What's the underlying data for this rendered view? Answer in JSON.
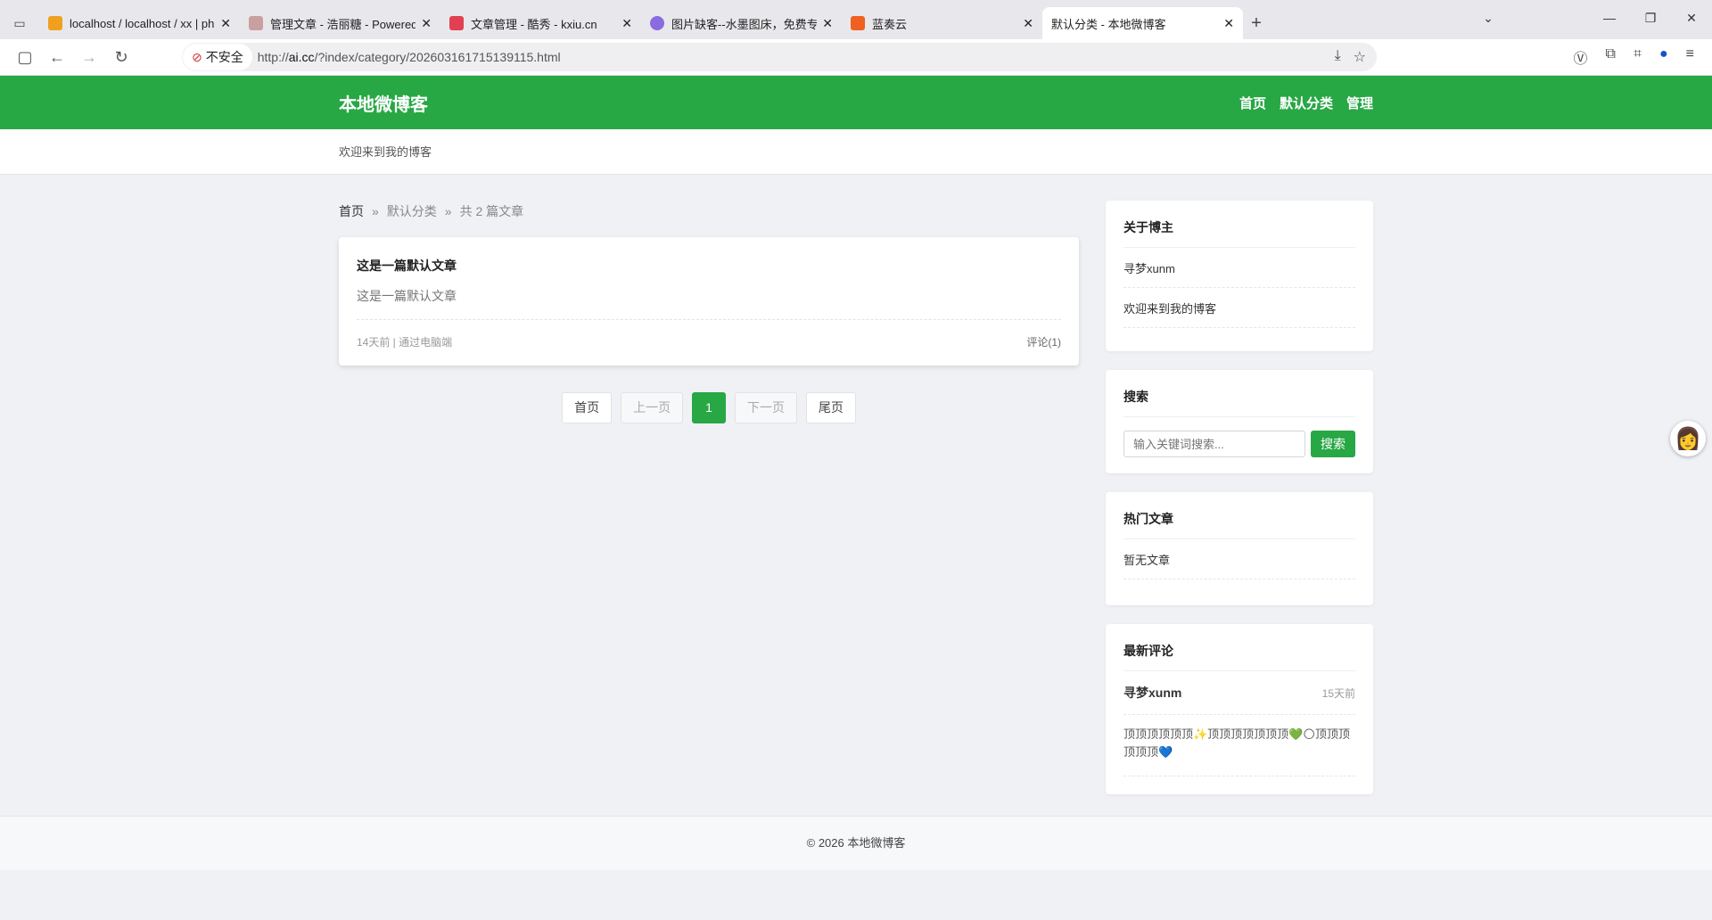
{
  "browser": {
    "tabs": [
      {
        "title": "localhost / localhost / xx | ph",
        "color": "#f0a020"
      },
      {
        "title": "管理文章 - 浩丽糖 - Powered b",
        "color": "#c8a0a0"
      },
      {
        "title": "文章管理 - 酷秀 - kxiu.cn",
        "color": "#e04050"
      },
      {
        "title": "图片缺客--水墨图床，免费专业",
        "color": "#8a6be0"
      },
      {
        "title": "蓝奏云",
        "color": "#f06020"
      },
      {
        "title": "默认分类 - 本地微博客",
        "color": ""
      }
    ],
    "insecure_label": "不安全",
    "url_prefix": "http://",
    "url_host": "ai.cc",
    "url_path": "/?index/category/202603161715139115.html"
  },
  "site": {
    "title": "本地微博客",
    "nav": [
      "首页",
      "默认分类",
      "管理"
    ],
    "tagline": "欢迎来到我的博客",
    "accent": "#28a745"
  },
  "breadcrumb": {
    "home": "首页",
    "category": "默认分类",
    "count": "共 2 篇文章",
    "sep": "»"
  },
  "posts": [
    {
      "title": "这是一篇默认文章",
      "excerpt": "这是一篇默认文章",
      "meta": "14天前 | 通过电脑端",
      "comments": "评论(1)"
    }
  ],
  "pagination": {
    "first": "首页",
    "prev": "上一页",
    "current": "1",
    "next": "下一页",
    "last": "尾页"
  },
  "sidebar": {
    "about": {
      "title": "关于博主",
      "name": "寻梦xunm",
      "desc": "欢迎来到我的博客"
    },
    "search": {
      "title": "搜索",
      "placeholder": "输入关键词搜索...",
      "button": "搜索"
    },
    "hot": {
      "title": "热门文章",
      "empty": "暂无文章"
    },
    "comments": {
      "title": "最新评论",
      "items": [
        {
          "author": "寻梦xunm",
          "time": "15天前",
          "text": "顶顶顶顶顶顶✨顶顶顶顶顶顶顶💚🌕顶顶顶顶顶顶💙"
        }
      ]
    }
  },
  "footer": {
    "text": "© 2026 本地微博客"
  }
}
